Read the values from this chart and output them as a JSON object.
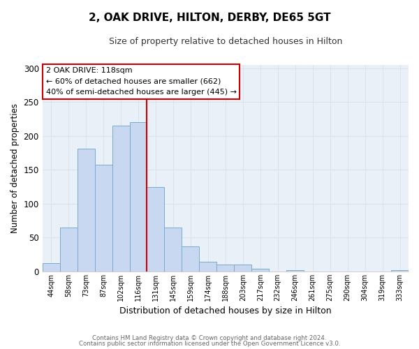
{
  "title": "2, OAK DRIVE, HILTON, DERBY, DE65 5GT",
  "subtitle": "Size of property relative to detached houses in Hilton",
  "xlabel": "Distribution of detached houses by size in Hilton",
  "ylabel": "Number of detached properties",
  "bar_labels": [
    "44sqm",
    "58sqm",
    "73sqm",
    "87sqm",
    "102sqm",
    "116sqm",
    "131sqm",
    "145sqm",
    "159sqm",
    "174sqm",
    "188sqm",
    "203sqm",
    "217sqm",
    "232sqm",
    "246sqm",
    "261sqm",
    "275sqm",
    "290sqm",
    "304sqm",
    "319sqm",
    "333sqm"
  ],
  "bar_values": [
    12,
    65,
    181,
    158,
    215,
    221,
    125,
    65,
    37,
    14,
    10,
    10,
    4,
    0,
    2,
    0,
    0,
    0,
    0,
    0,
    2
  ],
  "bar_color": "#c8d8f0",
  "bar_edge_color": "#7aaad0",
  "vline_x": 5.5,
  "vline_color": "#cc0000",
  "annotation_title": "2 OAK DRIVE: 118sqm",
  "annotation_line1": "← 60% of detached houses are smaller (662)",
  "annotation_line2": "40% of semi-detached houses are larger (445) →",
  "annotation_box_color": "#ffffff",
  "annotation_box_edge_color": "#cc0000",
  "ylim": [
    0,
    305
  ],
  "yticks": [
    0,
    50,
    100,
    150,
    200,
    250,
    300
  ],
  "footer1": "Contains HM Land Registry data © Crown copyright and database right 2024.",
  "footer2": "Contains public sector information licensed under the Open Government Licence v3.0.",
  "background_color": "#ffffff",
  "grid_color": "#d8e4f0"
}
